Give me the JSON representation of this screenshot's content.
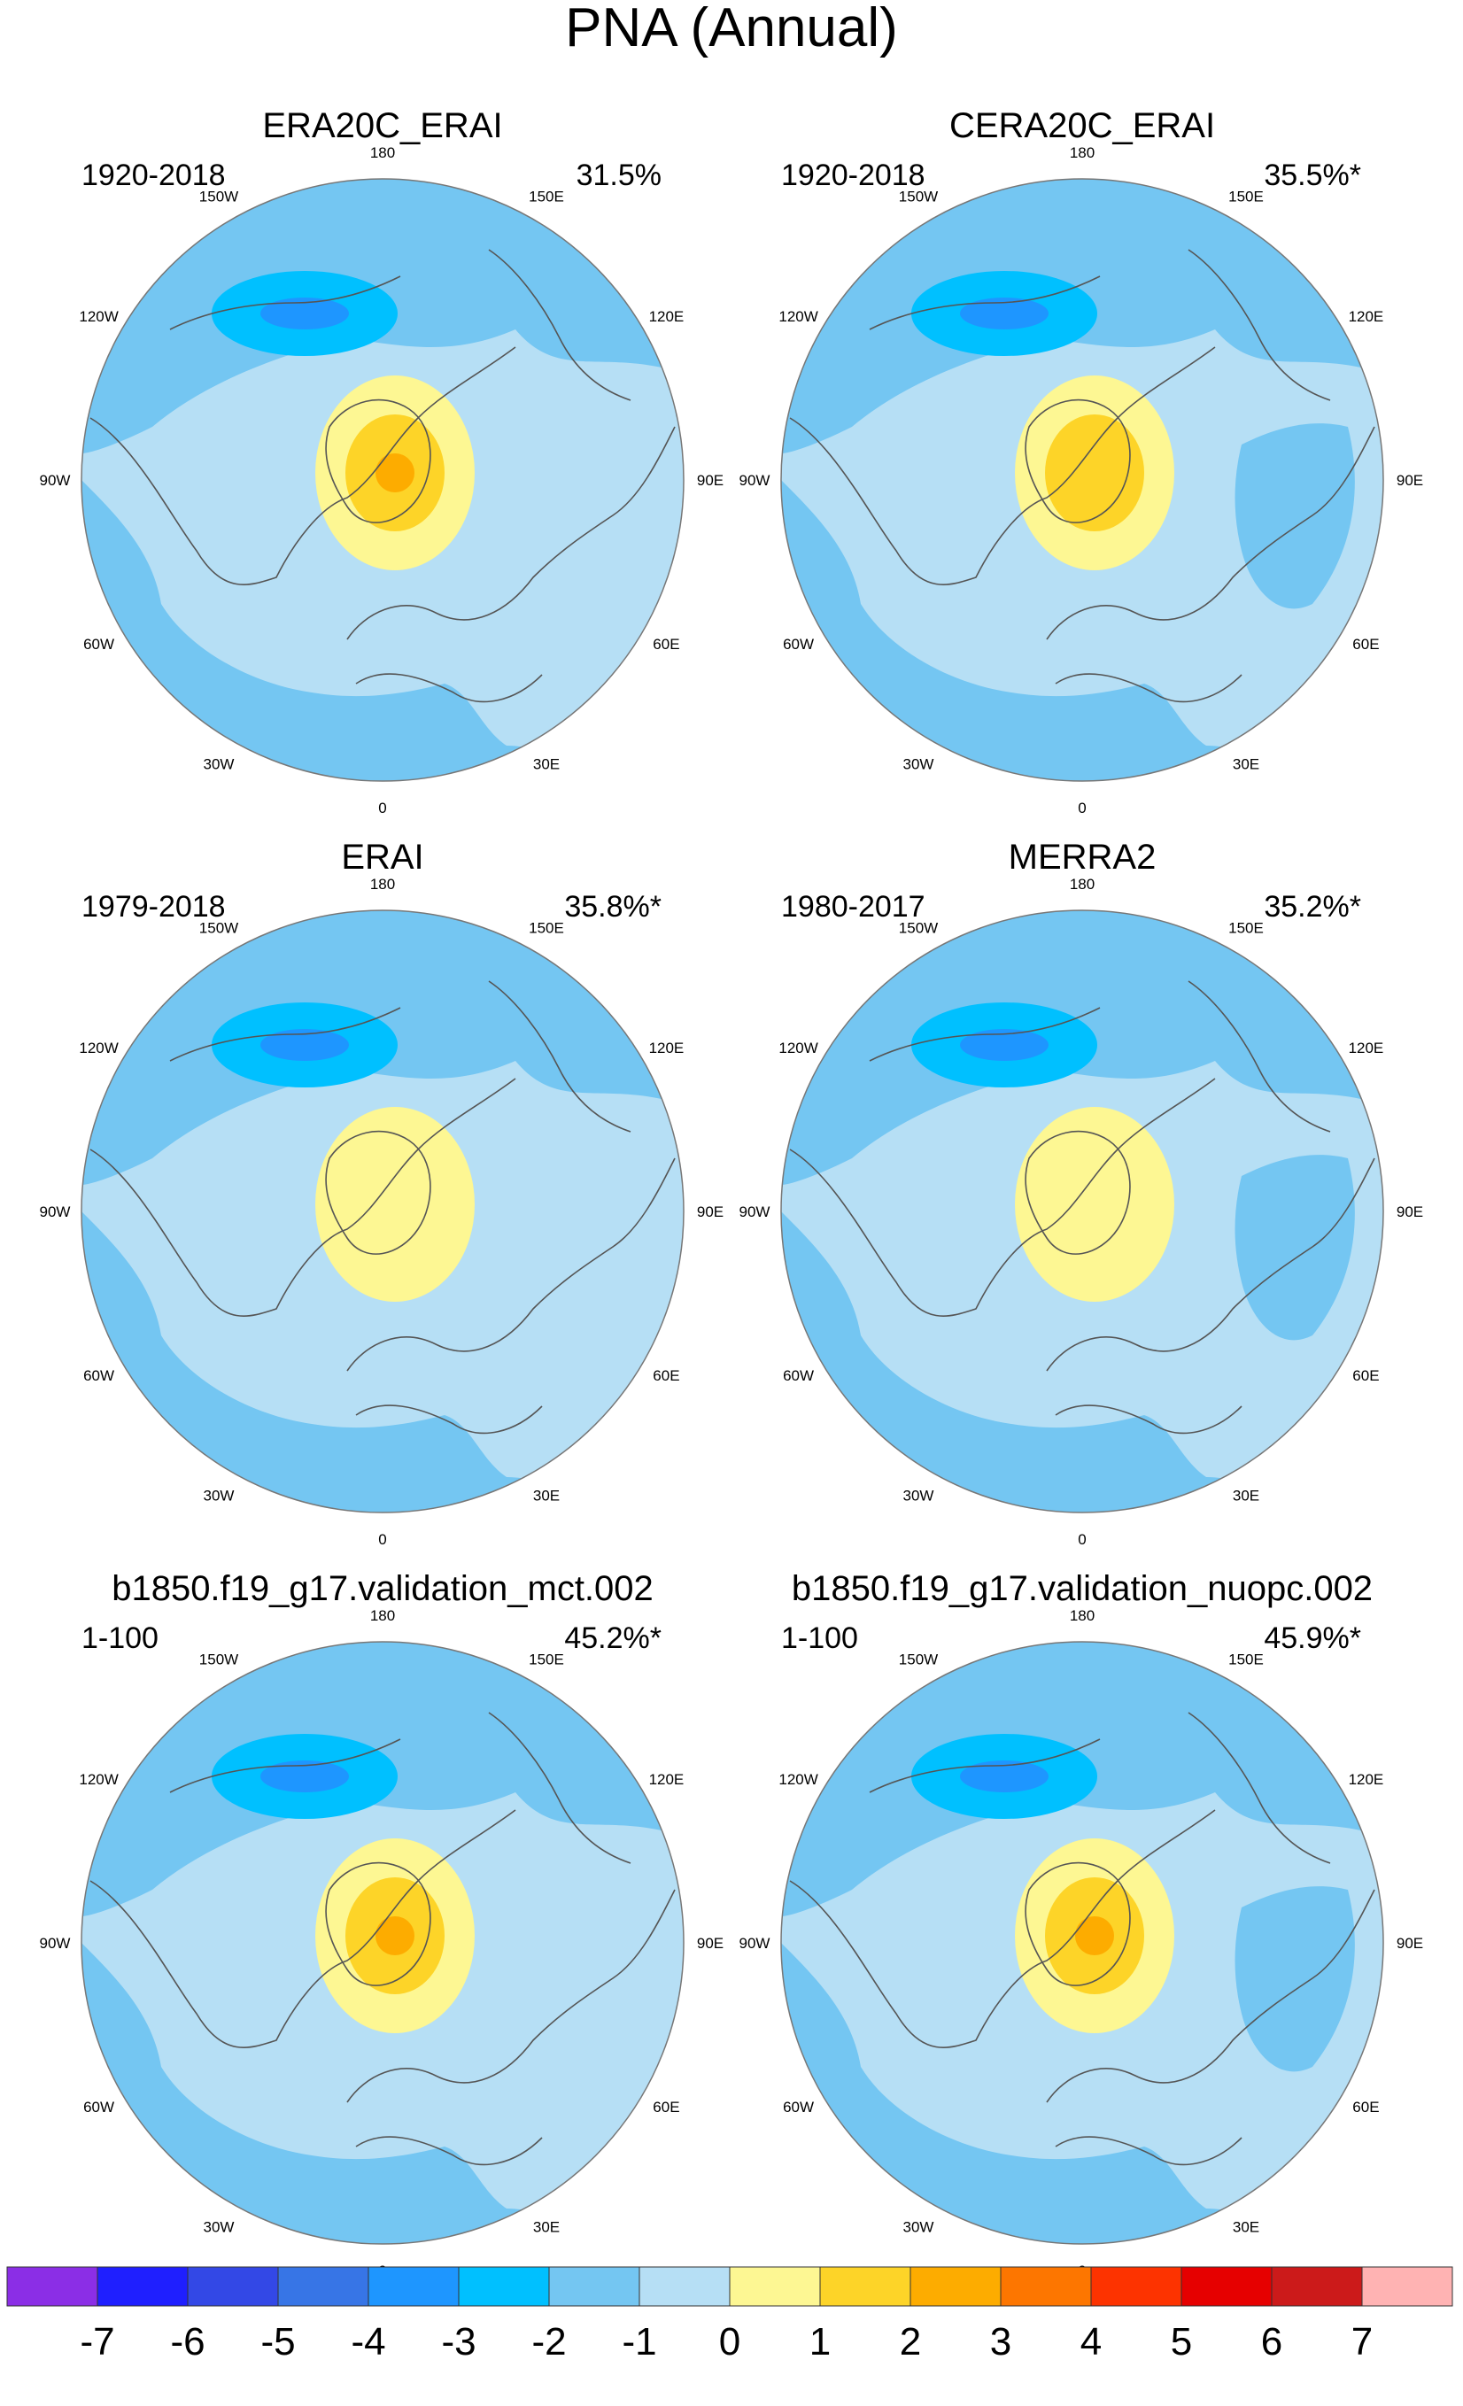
{
  "title": "PNA (Annual)",
  "chart_data": {
    "type": "heatmap",
    "projection": "north polar stereographic",
    "title": "PNA (Annual)",
    "longitude_labels": [
      "180",
      "150E",
      "120E",
      "90E",
      "60E",
      "30E",
      "0",
      "30W",
      "60W",
      "90W",
      "120W",
      "150W"
    ],
    "colorbar": {
      "ticks": [
        "-7",
        "-6",
        "-5",
        "-4",
        "-3",
        "-2",
        "-1",
        "0",
        "1",
        "2",
        "3",
        "4",
        "5",
        "6",
        "7"
      ],
      "colors": [
        "#8b2ee6",
        "#1f1fff",
        "#3348e6",
        "#3775e6",
        "#1e96ff",
        "#00c0ff",
        "#74c6f2",
        "#b6dff5",
        "#fdf793",
        "#fdd428",
        "#fdac00",
        "#fd7600",
        "#fd3300",
        "#e60000",
        "#cc1a1a",
        "#ffb3b3"
      ]
    },
    "panels": [
      {
        "title": "ERA20C_ERAI",
        "period": "1920-2018",
        "variance": "31.5%",
        "max_negative_level": -3,
        "max_positive_level": 3
      },
      {
        "title": "CERA20C_ERAI",
        "period": "1920-2018",
        "variance": "35.5%*",
        "max_negative_level": -3,
        "max_positive_level": 2
      },
      {
        "title": "ERAI",
        "period": "1979-2018",
        "variance": "35.8%*",
        "max_negative_level": -3,
        "max_positive_level": 1
      },
      {
        "title": "MERRA2",
        "period": "1980-2017",
        "variance": "35.2%*",
        "max_negative_level": -3,
        "max_positive_level": 1
      },
      {
        "title": "b1850.f19_g17.validation_mct.002",
        "period": "1-100",
        "variance": "45.2%*",
        "max_negative_level": -3,
        "max_positive_level": 3
      },
      {
        "title": "b1850.f19_g17.validation_nuopc.002",
        "period": "1-100",
        "variance": "45.9%*",
        "max_negative_level": -3,
        "max_positive_level": 3
      }
    ]
  }
}
